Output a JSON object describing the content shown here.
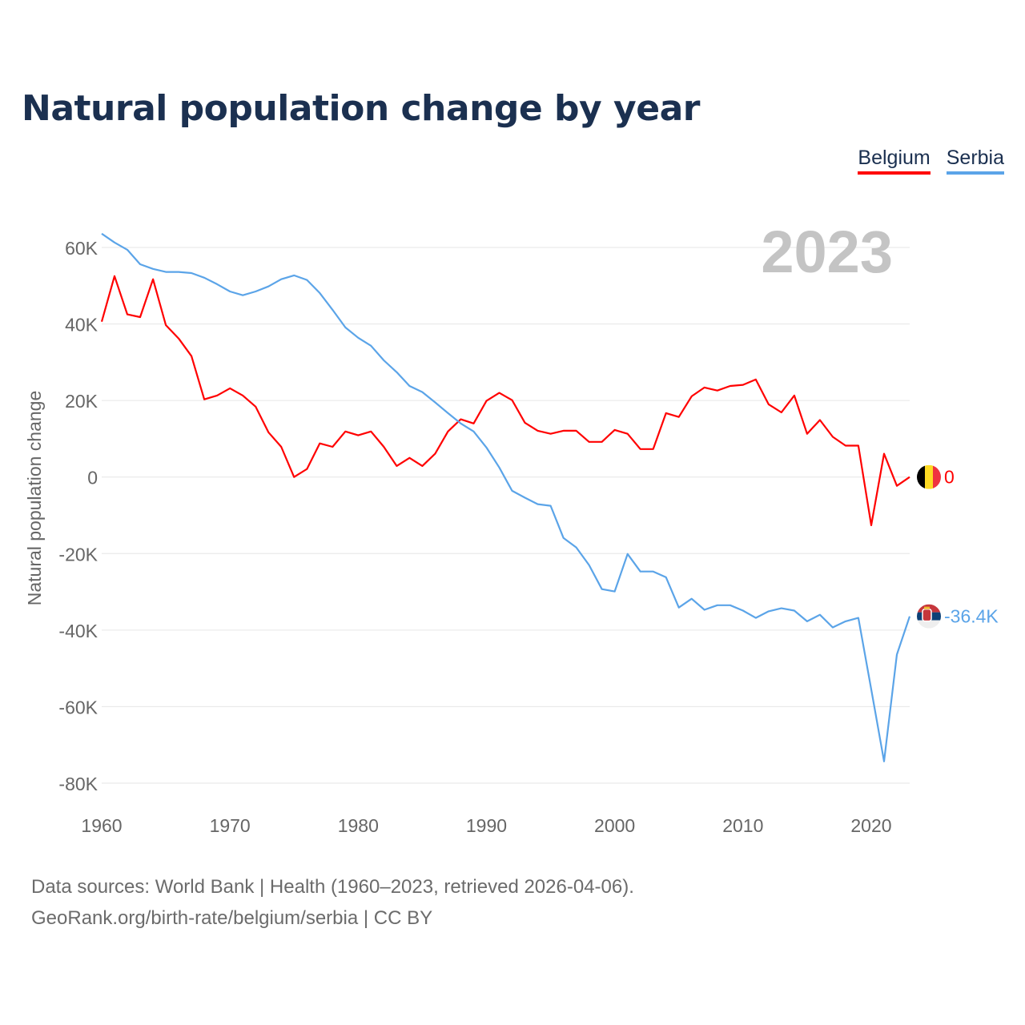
{
  "title": "Natural population change by year",
  "legend": [
    {
      "label": "Belgium",
      "color": "#ff0000"
    },
    {
      "label": "Serbia",
      "color": "#5ba4e8"
    }
  ],
  "year_label": "2023",
  "source_line1": "Data sources: World Bank | Health (1960–2023, retrieved 2026-04-06).",
  "source_line2": "GeoRank.org/birth-rate/belgium/serbia | CC BY",
  "chart_data": {
    "type": "line",
    "title": "Natural population change by year",
    "xlabel": "",
    "ylabel": "Natural population change",
    "xlim": [
      1960,
      2023
    ],
    "ylim": [
      -80000,
      60000
    ],
    "x_ticks": [
      1960,
      1970,
      1980,
      1990,
      2000,
      2010,
      2020
    ],
    "x_tick_labels": [
      "1960",
      "1970",
      "1980",
      "1990",
      "2000",
      "2010",
      "2020"
    ],
    "y_ticks": [
      60000,
      40000,
      20000,
      0,
      -20000,
      -40000,
      -60000,
      -80000
    ],
    "y_tick_labels": [
      "60K",
      "40K",
      "20K",
      "0",
      "-20K",
      "-40K",
      "-60K",
      "-80K"
    ],
    "grid": true,
    "legend_position": "top-right",
    "x_start": 1960,
    "series": [
      {
        "name": "Belgium",
        "color": "#ff0000",
        "end_label": "0",
        "flag": "belgium-flag",
        "values": [
          40600,
          52500,
          42500,
          41800,
          51700,
          39700,
          36200,
          31600,
          20300,
          21300,
          23200,
          21300,
          18400,
          11700,
          7900,
          0,
          2100,
          8800,
          7900,
          11900,
          10900,
          11900,
          7900,
          2900,
          5000,
          2900,
          6100,
          11900,
          15100,
          14000,
          19900,
          22000,
          20100,
          14200,
          12100,
          11300,
          12100,
          12100,
          9200,
          9200,
          12300,
          11300,
          7300,
          7300,
          16700,
          15700,
          21100,
          23400,
          22600,
          23800,
          24100,
          25500,
          19000,
          16900,
          21300,
          11300,
          14900,
          10500,
          8200,
          8200,
          -12600,
          6100,
          -2300,
          0
        ]
      },
      {
        "name": "Serbia",
        "color": "#5ba4e8",
        "end_label": "-36.4K",
        "flag": "serbia-flag",
        "values": [
          63600,
          61300,
          59400,
          55600,
          54400,
          53600,
          53600,
          53300,
          52100,
          50400,
          48500,
          47500,
          48500,
          49800,
          51700,
          52700,
          51500,
          48100,
          43700,
          39100,
          36400,
          34300,
          30500,
          27400,
          23800,
          22200,
          19500,
          16700,
          14000,
          11900,
          7700,
          2500,
          -3600,
          -5400,
          -7100,
          -7500,
          -15900,
          -18400,
          -23000,
          -29300,
          -29900,
          -20100,
          -24700,
          -24700,
          -26200,
          -34100,
          -31800,
          -34700,
          -33500,
          -33500,
          -34900,
          -36800,
          -35100,
          -34300,
          -34900,
          -37700,
          -36000,
          -39300,
          -37700,
          -36800,
          -55500,
          -74300,
          -46400,
          -36400
        ]
      }
    ]
  }
}
